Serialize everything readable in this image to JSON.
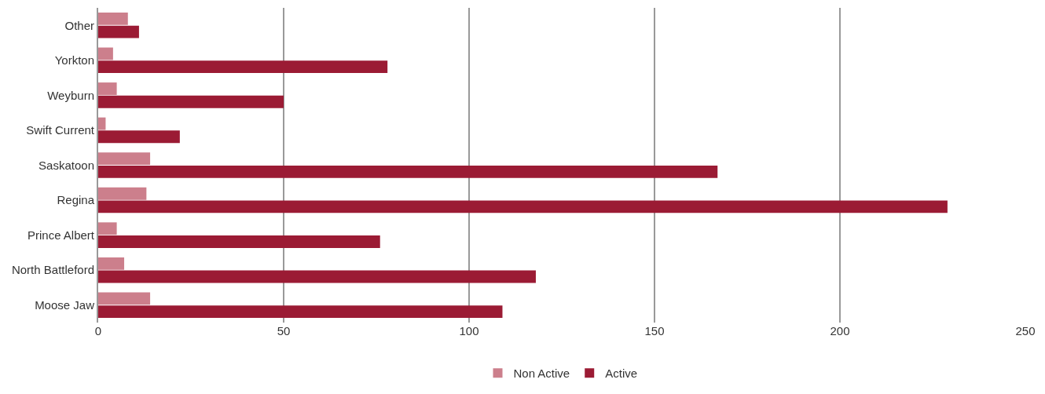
{
  "chart_data": {
    "type": "bar",
    "orientation": "horizontal",
    "categories": [
      "Other",
      "Yorkton",
      "Weyburn",
      "Swift Current",
      "Saskatoon",
      "Regina",
      "Prince Albert",
      "North Battleford",
      "Moose Jaw"
    ],
    "series": [
      {
        "name": "Non Active",
        "color": "#cc7f8c",
        "values": [
          8,
          4,
          5,
          2,
          14,
          13,
          5,
          7,
          14
        ]
      },
      {
        "name": "Active",
        "color": "#9b1b34",
        "values": [
          11,
          78,
          50,
          22,
          167,
          229,
          76,
          118,
          109
        ]
      }
    ],
    "xlim": [
      0,
      250
    ],
    "xticks": [
      0,
      50,
      100,
      150,
      200,
      250
    ],
    "grid": "x",
    "legend": "bottom"
  }
}
